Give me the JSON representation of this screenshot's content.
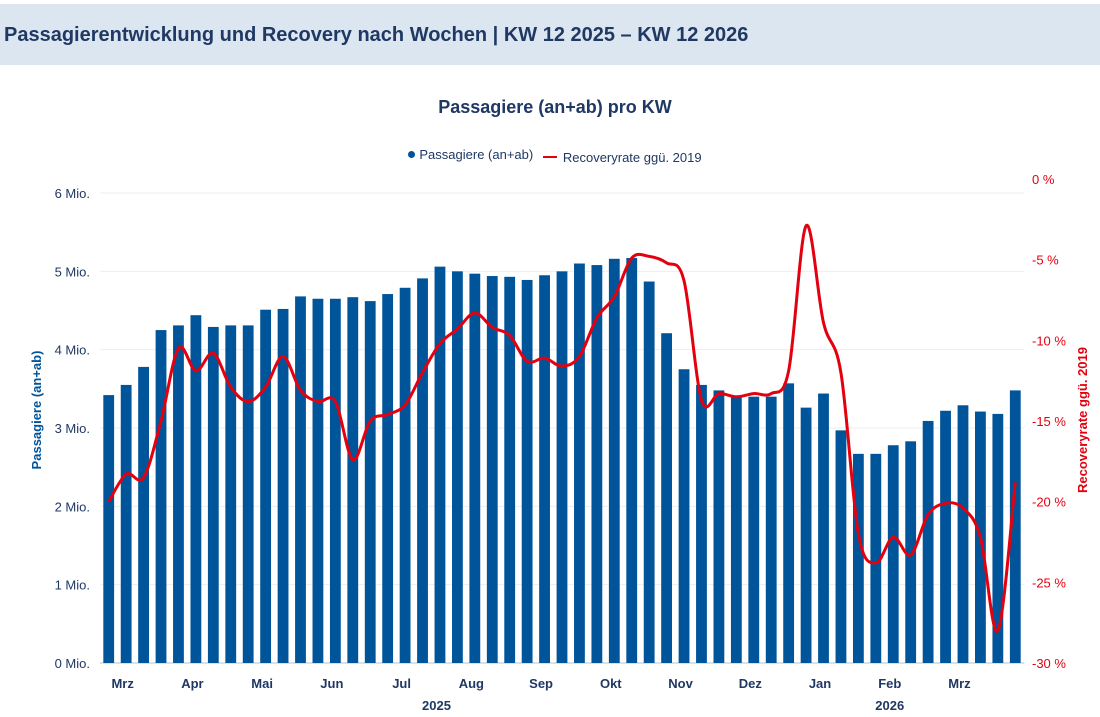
{
  "header": {
    "title": "Passagierentwicklung und Recovery nach Wochen | KW 12 2025 – KW 12 2026"
  },
  "colors": {
    "bar": "#00549a",
    "line": "#e3000f",
    "text": "#1f3864",
    "header_bg": "#dce6f0"
  },
  "chart_data": {
    "type": "bar",
    "title": "Passagiere (an+ab) pro KW",
    "legend": [
      "Passagiere (an+ab)",
      "Recoveryrate ggü. 2019"
    ],
    "ylabel": "Passagiere (an+ab)",
    "y2label": "Recoveryrate ggü. 2019",
    "ylim": [
      0,
      6000000
    ],
    "y2lim": [
      -30,
      0
    ],
    "yticks": [
      "0 Mio.",
      "1 Mio.",
      "2 Mio.",
      "3 Mio.",
      "4 Mio.",
      "5 Mio.",
      "6 Mio."
    ],
    "y2ticks": [
      "-30 %",
      "-25 %",
      "-20 %",
      "-15 %",
      "-10 %",
      "-5 %",
      "0 %"
    ],
    "month_labels": [
      "Mrz",
      "Apr",
      "Mai",
      "Jun",
      "Jul",
      "Aug",
      "Sep",
      "Okt",
      "Nov",
      "Dez",
      "Jan",
      "Feb",
      "Mrz"
    ],
    "month_positions": [
      1.3,
      5.3,
      9.3,
      13.3,
      17.3,
      21.3,
      25.3,
      29.3,
      33.3,
      37.3,
      41.3,
      45.3,
      49.3
    ],
    "year_labels": [
      "2025",
      "2026"
    ],
    "year_positions": [
      19.3,
      45.3
    ],
    "series": [
      {
        "name": "Passagiere (an+ab)",
        "type": "bar",
        "values": [
          3.42,
          3.55,
          3.78,
          4.25,
          4.31,
          4.44,
          4.29,
          4.31,
          4.31,
          4.51,
          4.52,
          4.68,
          4.65,
          4.65,
          4.67,
          4.62,
          4.71,
          4.79,
          4.91,
          5.06,
          5.0,
          4.97,
          4.94,
          4.93,
          4.89,
          4.95,
          5.0,
          5.1,
          5.08,
          5.16,
          5.17,
          4.87,
          4.21,
          3.75,
          3.55,
          3.48,
          3.4,
          3.4,
          3.4,
          3.57,
          3.26,
          3.44,
          2.97,
          2.67,
          2.67,
          2.78,
          2.83,
          3.09,
          3.22,
          3.29,
          3.21,
          3.18,
          3.48
        ]
      },
      {
        "name": "Recoveryrate ggü. 2019",
        "type": "line",
        "values": [
          -20.0,
          -18.3,
          -18.5,
          -15.0,
          -10.5,
          -11.9,
          -10.8,
          -12.9,
          -13.8,
          -12.9,
          -11.0,
          -13.1,
          -13.8,
          -13.8,
          -17.4,
          -15.0,
          -14.6,
          -14.0,
          -12.0,
          -10.2,
          -9.3,
          -8.3,
          -9.2,
          -9.7,
          -11.3,
          -11.1,
          -11.6,
          -11.0,
          -8.6,
          -7.3,
          -4.9,
          -4.8,
          -5.2,
          -6.3,
          -13.7,
          -13.3,
          -13.5,
          -13.3,
          -13.3,
          -11.9,
          -2.9,
          -8.9,
          -12.0,
          -22.0,
          -23.8,
          -22.2,
          -23.3,
          -20.8,
          -20.1,
          -20.4,
          -22.2,
          -28.0,
          -18.8
        ]
      }
    ]
  }
}
